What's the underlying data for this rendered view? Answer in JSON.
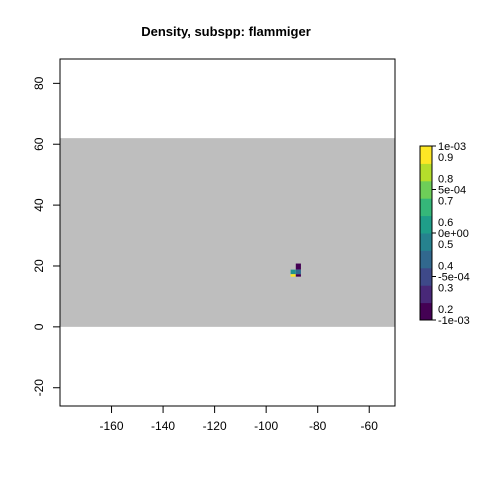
{
  "chart_data": {
    "type": "heatmap",
    "title": "Density, subspp: flammiger",
    "xlabel": "",
    "ylabel": "",
    "xlim": [
      -180,
      -50
    ],
    "ylim": [
      -26,
      88
    ],
    "x_ticks": [
      -160,
      -140,
      -120,
      -100,
      -80,
      -60
    ],
    "y_ticks": [
      -20,
      0,
      20,
      40,
      60,
      80
    ],
    "x_tick_labels": [
      "-160",
      "-140",
      "-120",
      "-100",
      "-80",
      "-60"
    ],
    "y_tick_labels": [
      "-20",
      "0",
      "20",
      "40",
      "60",
      "80"
    ],
    "background_region": {
      "x": [
        -180,
        -50
      ],
      "y": [
        0,
        62
      ],
      "color": "#bebebe"
    },
    "cells": [
      {
        "x": [
          -88.5,
          -86.5
        ],
        "y": [
          18.8,
          20.8
        ],
        "color": "#440154"
      },
      {
        "x": [
          -90.5,
          -88.5
        ],
        "y": [
          17.3,
          18.8
        ],
        "color": "#21918c"
      },
      {
        "x": [
          -88.5,
          -86.5
        ],
        "y": [
          17.3,
          18.8
        ],
        "color": "#31688e"
      },
      {
        "x": [
          -90.5,
          -88.5
        ],
        "y": [
          16.5,
          17.3
        ],
        "color": "#fde725"
      },
      {
        "x": [
          -88.5,
          -86.5
        ],
        "y": [
          16.5,
          17.3
        ],
        "color": "#440154"
      }
    ],
    "grid": false,
    "legend": {
      "position": "right",
      "palette": [
        "#440154",
        "#482878",
        "#3e4989",
        "#31688e",
        "#26828e",
        "#1f9e89",
        "#35b779",
        "#6ece58",
        "#b5de2b",
        "#fde725"
      ],
      "labels_right": [
        "1e-03",
        "5e-04",
        "0e+00",
        "-5e-04",
        "-1e-03"
      ],
      "labels_right_values": [
        0.001,
        0.0005,
        0,
        -0.0005,
        -0.001
      ],
      "labels_inner": [
        "0.9",
        "0.8",
        "0.7",
        "0.6",
        "0.5",
        "0.4",
        "0.3",
        "0.2"
      ],
      "labels_inner_values": [
        0.9,
        0.8,
        0.7,
        0.6,
        0.5,
        0.4,
        0.3,
        0.2
      ]
    }
  }
}
